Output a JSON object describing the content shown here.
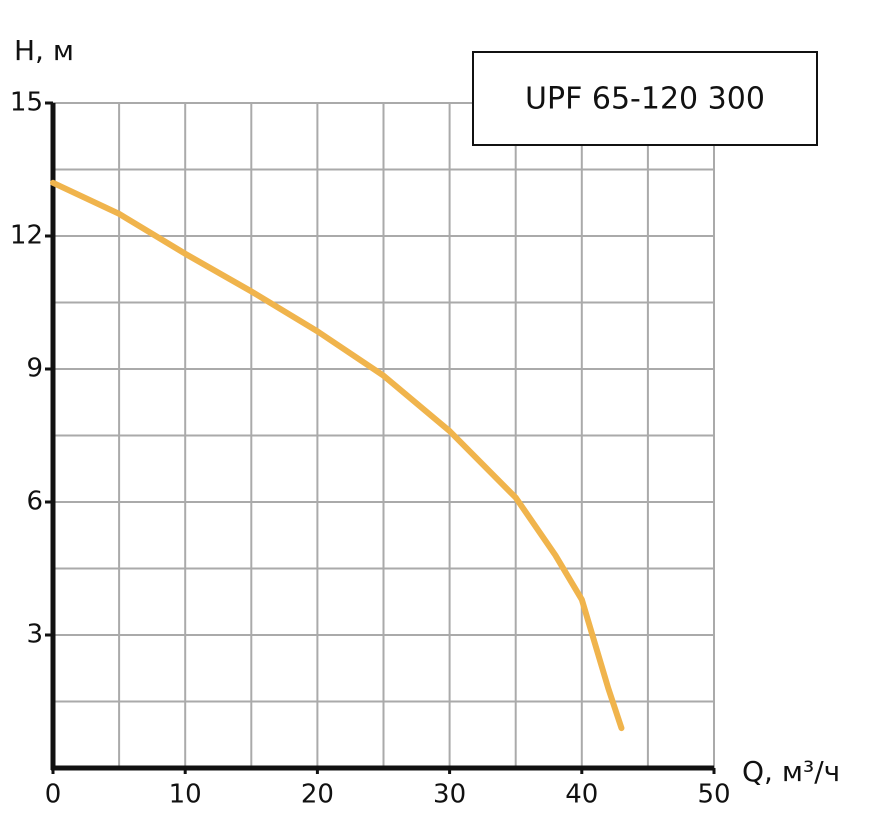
{
  "chart_data": {
    "type": "line",
    "title": "UPF 65-120 300",
    "ylabel": "H, м",
    "xlabel": "Q, м³/ч",
    "xlim": [
      0,
      50
    ],
    "ylim": [
      0,
      15
    ],
    "xticks": [
      0,
      10,
      20,
      30,
      40,
      50
    ],
    "yticks": [
      3,
      6,
      9,
      12,
      15
    ],
    "xgrid": [
      5,
      10,
      15,
      20,
      25,
      30,
      35,
      40,
      45,
      50
    ],
    "ygrid": [
      1.5,
      3,
      4.5,
      6,
      7.5,
      9,
      10.5,
      12,
      13.5,
      15
    ],
    "grid": true,
    "series": [
      {
        "color": "#f0b44c",
        "x": [
          0,
          5,
          10,
          15,
          20,
          25,
          30,
          35,
          38,
          40,
          42,
          43
        ],
        "values": [
          13.2,
          12.5,
          11.6,
          10.75,
          9.85,
          8.85,
          7.6,
          6.1,
          4.8,
          3.8,
          1.8,
          0.9
        ]
      }
    ]
  }
}
